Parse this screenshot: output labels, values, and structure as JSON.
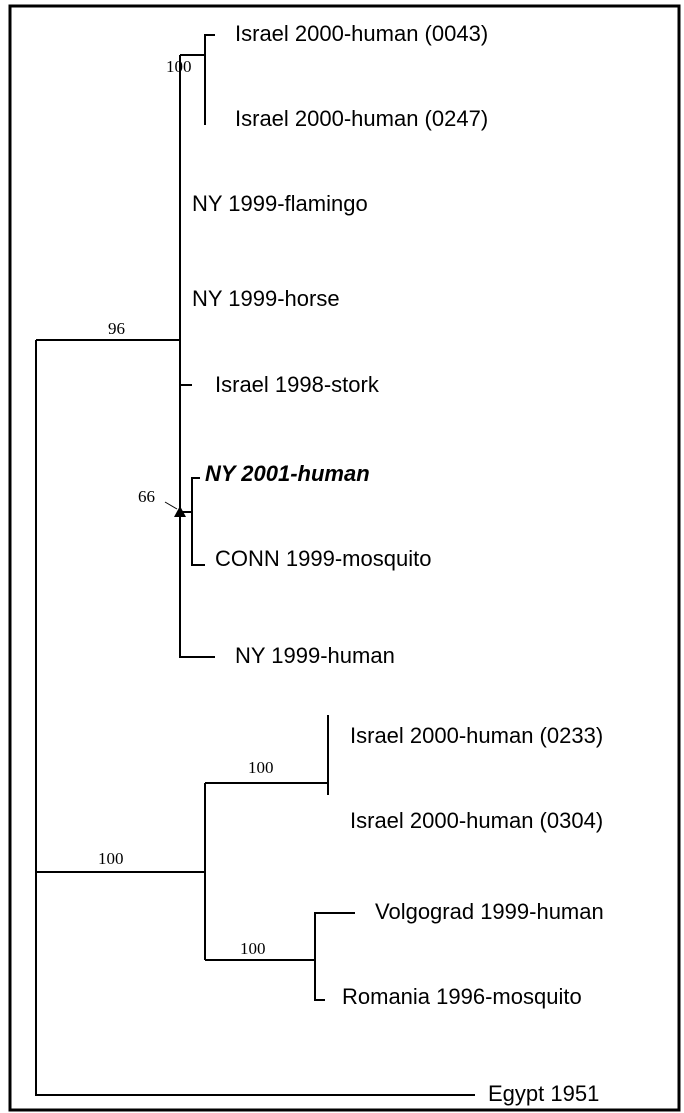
{
  "leaves": [
    "Israel 2000-human (0043)",
    "Israel 2000-human (0247)",
    "NY 1999-flamingo",
    "NY 1999-horse",
    "Israel 1998-stork",
    "NY 2001-human",
    "CONN 1999-mosquito",
    "NY 1999-human",
    "Israel 2000-human (0233)",
    "Israel 2000-human (0304)",
    "Volgograd 1999-human",
    "Romania 1996-mosquito",
    "Egypt 1951"
  ],
  "support": [
    "100",
    "96",
    "66",
    "100",
    "100",
    "100"
  ]
}
